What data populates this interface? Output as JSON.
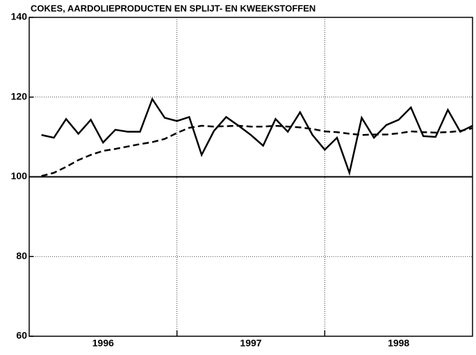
{
  "chart_data": {
    "type": "line",
    "title": "COKES, AARDOLIEPRODUCTEN EN SPLIJT- EN KWEEKSTOFFEN",
    "x": [
      1996.083,
      1996.167,
      1996.25,
      1996.333,
      1996.417,
      1996.5,
      1996.583,
      1996.667,
      1996.75,
      1996.833,
      1996.917,
      1997,
      1997.083,
      1997.167,
      1997.25,
      1997.333,
      1997.417,
      1997.5,
      1997.583,
      1997.667,
      1997.75,
      1997.833,
      1997.917,
      1998,
      1998.083,
      1998.167,
      1998.25,
      1998.333,
      1998.417,
      1998.5,
      1998.583,
      1998.667,
      1998.75,
      1998.833,
      1998.917,
      1999
    ],
    "series": [
      {
        "color": "#000000",
        "dash": "solid",
        "values": [
          110.5,
          109.8,
          114.5,
          110.8,
          114.3,
          108.6,
          111.8,
          111.3,
          111.3,
          119.5,
          114.8,
          114,
          115,
          105.5,
          111.5,
          115,
          112.8,
          110.5,
          107.8,
          114.5,
          111.3,
          116.2,
          110.5,
          106.8,
          109.8,
          101,
          114.8,
          109.8,
          113,
          114.3,
          117.4,
          110.2,
          110,
          116.8,
          111.3,
          112.8
        ]
      },
      {
        "color": "#000000",
        "dash": "dashed",
        "values": [
          100.2,
          101,
          102.5,
          104.2,
          105.5,
          106.5,
          107,
          107.6,
          108.2,
          108.7,
          109.5,
          111,
          112.3,
          112.8,
          112.6,
          112.7,
          112.8,
          112.6,
          112.6,
          112.8,
          112.6,
          112.4,
          112,
          111.4,
          111.2,
          110.8,
          110.5,
          110.6,
          110.6,
          110.9,
          111.4,
          111.2,
          111.1,
          111.2,
          111.5,
          112.2
        ]
      }
    ],
    "xlim": [
      1996,
      1999
    ],
    "xticks": [
      {
        "value": 1996.5,
        "label": "1996"
      },
      {
        "value": 1997.5,
        "label": "1997"
      },
      {
        "value": 1998.5,
        "label": "1998"
      }
    ],
    "xgrid": [
      1997,
      1998
    ],
    "ylim": [
      60,
      140
    ],
    "yticks": [
      60,
      80,
      100,
      120,
      140
    ],
    "hline": 100,
    "grid": true
  }
}
